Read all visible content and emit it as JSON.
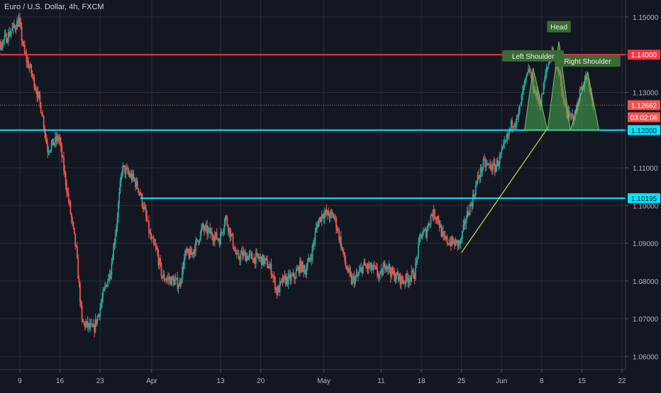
{
  "header": {
    "title": "Euro / U.S. Dollar, 4h, FXCM"
  },
  "colors": {
    "background": "#131722",
    "grid": "#2a2e39",
    "up": "#26a69a",
    "down": "#ef5350",
    "resistance": "#f23645",
    "support": "#00e5ff",
    "trend": "#d4d84a",
    "pattern_fill": "#4caf50",
    "label_bg": "#3a6b35",
    "axis_text": "#b2b5be"
  },
  "chart_data": {
    "type": "candlestick",
    "symbol": "Euro / U.S. Dollar",
    "interval": "4h",
    "source": "FXCM",
    "y_ticks": [
      "1.15000",
      "1.14000",
      "1.13000",
      "1.12000",
      "1.11000",
      "1.10000",
      "1.09000",
      "1.08000",
      "1.07000",
      "1.06000"
    ],
    "x_ticks": [
      "9",
      "16",
      "23",
      "Apr",
      "13",
      "20",
      "May",
      "11",
      "18",
      "25",
      "Jun",
      "8",
      "15",
      "22"
    ],
    "ylim": [
      1.0565,
      1.1545
    ],
    "price_markers": [
      {
        "label": "1.14000",
        "value": 1.14,
        "color": "#f23645"
      },
      {
        "label": "1.12662",
        "value": 1.12662,
        "color": "#ef5350"
      },
      {
        "label": "03:02:06",
        "value": 1.12,
        "color": "#ef5350",
        "offset_below": true
      },
      {
        "label": "1.12000",
        "value": 1.12,
        "color": "#00e5ff"
      },
      {
        "label": "1.10195",
        "value": 1.10195,
        "color": "#00e5ff"
      }
    ],
    "horizontal_lines": [
      {
        "name": "resistance",
        "value": 1.14,
        "from_date": "Mar 1",
        "color": "#f23645"
      },
      {
        "name": "support",
        "value": 1.12,
        "from_date": "Mar 1",
        "color": "#00e5ff"
      },
      {
        "name": "support-2",
        "value": 1.10195,
        "from_date": "Mar 30",
        "color": "#00e5ff"
      }
    ],
    "current_price": 1.12662,
    "trendline": {
      "from": {
        "date": "May 25",
        "value": 1.0875
      },
      "to": {
        "date": "Jun 9",
        "value": 1.1205
      }
    },
    "pattern": {
      "labels": [
        "Left Shoulder",
        "Head",
        "Right Shoulder"
      ],
      "points": [
        {
          "date": "Jun 5",
          "value": 1.12
        },
        {
          "date": "Jun 6.5",
          "value": 1.1365
        },
        {
          "date": "Jun 9",
          "value": 1.12
        },
        {
          "date": "Jun 11",
          "value": 1.1435
        },
        {
          "date": "Jun 13",
          "value": 1.12
        },
        {
          "date": "Jun 16",
          "value": 1.1355
        },
        {
          "date": "Jun 18",
          "value": 1.12
        }
      ]
    },
    "anchors": [
      {
        "date": "Mar 1",
        "value": 1.113
      },
      {
        "date": "Mar 3",
        "value": 1.125
      },
      {
        "date": "Mar 5",
        "value": 1.141
      },
      {
        "date": "Mar 7",
        "value": 1.145
      },
      {
        "date": "Mar 9",
        "value": 1.149
      },
      {
        "date": "Mar 10",
        "value": 1.14
      },
      {
        "date": "Mar 11",
        "value": 1.136
      },
      {
        "date": "Mar 12",
        "value": 1.131
      },
      {
        "date": "Mar 13",
        "value": 1.125
      },
      {
        "date": "Mar 14",
        "value": 1.115
      },
      {
        "date": "Mar 16",
        "value": 1.118
      },
      {
        "date": "Mar 17",
        "value": 1.108
      },
      {
        "date": "Mar 18",
        "value": 1.098
      },
      {
        "date": "Mar 19",
        "value": 1.088
      },
      {
        "date": "Mar 20",
        "value": 1.069
      },
      {
        "date": "Mar 22",
        "value": 1.067
      },
      {
        "date": "Mar 23",
        "value": 1.072
      },
      {
        "date": "Mar 24",
        "value": 1.078
      },
      {
        "date": "Mar 25",
        "value": 1.083
      },
      {
        "date": "Mar 26",
        "value": 1.095
      },
      {
        "date": "Mar 27",
        "value": 1.11
      },
      {
        "date": "Mar 29",
        "value": 1.107
      },
      {
        "date": "Mar 30",
        "value": 1.104
      },
      {
        "date": "Mar 31",
        "value": 1.098
      },
      {
        "date": "Apr 1",
        "value": 1.091
      },
      {
        "date": "Apr 2",
        "value": 1.088
      },
      {
        "date": "Apr 3",
        "value": 1.081
      },
      {
        "date": "Apr 5",
        "value": 1.08
      },
      {
        "date": "Apr 6",
        "value": 1.079
      },
      {
        "date": "Apr 7",
        "value": 1.087
      },
      {
        "date": "Apr 8",
        "value": 1.087
      },
      {
        "date": "Apr 9",
        "value": 1.09
      },
      {
        "date": "Apr 10",
        "value": 1.094
      },
      {
        "date": "Apr 13",
        "value": 1.091
      },
      {
        "date": "Apr 14",
        "value": 1.097
      },
      {
        "date": "Apr 15",
        "value": 1.092
      },
      {
        "date": "Apr 16",
        "value": 1.086
      },
      {
        "date": "Apr 17",
        "value": 1.087
      },
      {
        "date": "Apr 19",
        "value": 1.086
      },
      {
        "date": "Apr 20",
        "value": 1.086
      },
      {
        "date": "Apr 21",
        "value": 1.085
      },
      {
        "date": "Apr 22",
        "value": 1.083
      },
      {
        "date": "Apr 23",
        "value": 1.077
      },
      {
        "date": "Apr 24",
        "value": 1.08
      },
      {
        "date": "Apr 26",
        "value": 1.081
      },
      {
        "date": "Apr 27",
        "value": 1.084
      },
      {
        "date": "Apr 28",
        "value": 1.083
      },
      {
        "date": "Apr 29",
        "value": 1.087
      },
      {
        "date": "Apr 30",
        "value": 1.095
      },
      {
        "date": "May 1",
        "value": 1.098
      },
      {
        "date": "May 3",
        "value": 1.097
      },
      {
        "date": "May 4",
        "value": 1.091
      },
      {
        "date": "May 5",
        "value": 1.084
      },
      {
        "date": "May 6",
        "value": 1.08
      },
      {
        "date": "May 7",
        "value": 1.081
      },
      {
        "date": "May 8",
        "value": 1.084
      },
      {
        "date": "May 10",
        "value": 1.083
      },
      {
        "date": "May 11",
        "value": 1.081
      },
      {
        "date": "May 12",
        "value": 1.085
      },
      {
        "date": "May 13",
        "value": 1.082
      },
      {
        "date": "May 14",
        "value": 1.081
      },
      {
        "date": "May 15",
        "value": 1.08
      },
      {
        "date": "May 17",
        "value": 1.082
      },
      {
        "date": "May 18",
        "value": 1.092
      },
      {
        "date": "May 19",
        "value": 1.093
      },
      {
        "date": "May 20",
        "value": 1.098
      },
      {
        "date": "May 21",
        "value": 1.097
      },
      {
        "date": "May 22",
        "value": 1.091
      },
      {
        "date": "May 24",
        "value": 1.09
      },
      {
        "date": "May 25",
        "value": 1.09
      },
      {
        "date": "May 26",
        "value": 1.097
      },
      {
        "date": "May 27",
        "value": 1.101
      },
      {
        "date": "May 28",
        "value": 1.107
      },
      {
        "date": "May 29",
        "value": 1.111
      },
      {
        "date": "May 31",
        "value": 1.11
      },
      {
        "date": "Jun 1",
        "value": 1.113
      },
      {
        "date": "Jun 2",
        "value": 1.117
      },
      {
        "date": "Jun 3",
        "value": 1.122
      },
      {
        "date": "Jun 4",
        "value": 1.123
      },
      {
        "date": "Jun 5",
        "value": 1.131
      },
      {
        "date": "Jun 6",
        "value": 1.136
      },
      {
        "date": "Jun 7",
        "value": 1.13
      },
      {
        "date": "Jun 8",
        "value": 1.127
      },
      {
        "date": "Jun 9",
        "value": 1.136
      },
      {
        "date": "Jun 10",
        "value": 1.141
      },
      {
        "date": "Jun 11",
        "value": 1.137
      },
      {
        "date": "Jun 12",
        "value": 1.127
      },
      {
        "date": "Jun 13",
        "value": 1.123
      },
      {
        "date": "Jun 14",
        "value": 1.124
      },
      {
        "date": "Jun 15",
        "value": 1.131
      },
      {
        "date": "Jun 16",
        "value": 1.134
      },
      {
        "date": "Jun 17",
        "value": 1.127
      }
    ]
  }
}
